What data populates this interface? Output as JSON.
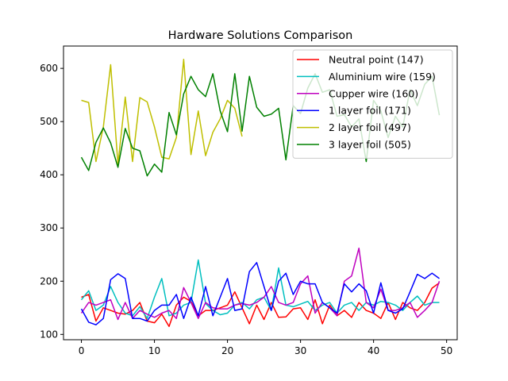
{
  "chart_data": {
    "type": "line",
    "title": "Hardware Solutions Comparison",
    "xlabel": "",
    "ylabel": "",
    "xlim": [
      -2.45,
      51.45
    ],
    "ylim": [
      90,
      642
    ],
    "xticks": [
      0,
      10,
      20,
      30,
      40,
      50
    ],
    "yticks": [
      100,
      200,
      300,
      400,
      500,
      600
    ],
    "grid": false,
    "legend_position": "top-right",
    "series": [
      {
        "name": "Neutral point (147)",
        "color": "#ff0000",
        "x": [
          0,
          1,
          2,
          3,
          4,
          5,
          6,
          7,
          8,
          9,
          10,
          11,
          12,
          13,
          14,
          15,
          16,
          17,
          18,
          19,
          20,
          21,
          22,
          23,
          24,
          25,
          26,
          27,
          28,
          29,
          30,
          31,
          32,
          33,
          34,
          35,
          36,
          37,
          38,
          39,
          40,
          41,
          42,
          43,
          44,
          45,
          46,
          47,
          48,
          49
        ],
        "values": [
          170,
          175,
          125,
          150,
          145,
          140,
          138,
          145,
          160,
          125,
          122,
          138,
          115,
          155,
          170,
          162,
          135,
          145,
          145,
          150,
          155,
          180,
          150,
          120,
          155,
          128,
          160,
          132,
          133,
          148,
          150,
          128,
          165,
          120,
          155,
          135,
          145,
          132,
          160,
          145,
          140,
          130,
          160,
          128,
          160,
          150,
          145,
          160,
          187,
          197
        ]
      },
      {
        "name": "Aluminium wire (159)",
        "color": "#00bfbf",
        "x": [
          0,
          1,
          2,
          3,
          4,
          5,
          6,
          7,
          8,
          9,
          10,
          11,
          12,
          13,
          14,
          15,
          16,
          17,
          18,
          19,
          20,
          21,
          22,
          23,
          24,
          25,
          26,
          27,
          28,
          29,
          30,
          31,
          32,
          33,
          34,
          35,
          36,
          37,
          38,
          39,
          40,
          41,
          42,
          43,
          44,
          45,
          46,
          47,
          48,
          49
        ],
        "values": [
          165,
          182,
          145,
          155,
          190,
          160,
          140,
          135,
          152,
          130,
          170,
          205,
          135,
          140,
          155,
          160,
          240,
          158,
          145,
          137,
          140,
          155,
          160,
          148,
          165,
          170,
          145,
          225,
          155,
          152,
          157,
          162,
          145,
          155,
          160,
          140,
          155,
          160,
          145,
          160,
          155,
          162,
          160,
          155,
          145,
          160,
          172,
          155,
          160,
          160
        ]
      },
      {
        "name": "Cupper wire (160)",
        "color": "#bf00bf",
        "x": [
          0,
          1,
          2,
          3,
          4,
          5,
          6,
          7,
          8,
          9,
          10,
          11,
          12,
          13,
          14,
          15,
          16,
          17,
          18,
          19,
          20,
          21,
          22,
          23,
          24,
          25,
          26,
          27,
          28,
          29,
          30,
          31,
          32,
          33,
          34,
          35,
          36,
          37,
          38,
          39,
          40,
          41,
          42,
          43,
          44,
          45,
          46,
          47,
          48,
          49
        ],
        "values": [
          140,
          160,
          155,
          160,
          165,
          128,
          160,
          130,
          145,
          138,
          132,
          140,
          145,
          130,
          188,
          160,
          130,
          160,
          150,
          148,
          148,
          155,
          158,
          155,
          160,
          170,
          190,
          160,
          155,
          160,
          195,
          210,
          140,
          160,
          150,
          135,
          200,
          210,
          262,
          160,
          150,
          185,
          145,
          145,
          150,
          160,
          132,
          145,
          160,
          200
        ]
      },
      {
        "name": "1 layer foil (171)",
        "color": "#0000ff",
        "x": [
          0,
          1,
          2,
          3,
          4,
          5,
          6,
          7,
          8,
          9,
          10,
          11,
          12,
          13,
          14,
          15,
          16,
          17,
          18,
          19,
          20,
          21,
          22,
          23,
          24,
          25,
          26,
          27,
          28,
          29,
          30,
          31,
          32,
          33,
          34,
          35,
          36,
          37,
          38,
          39,
          40,
          41,
          42,
          43,
          44,
          45,
          46,
          47,
          48,
          49
        ],
        "values": [
          148,
          123,
          118,
          130,
          203,
          214,
          205,
          130,
          130,
          125,
          145,
          155,
          155,
          175,
          130,
          170,
          135,
          190,
          135,
          170,
          205,
          145,
          148,
          218,
          235,
          190,
          145,
          200,
          215,
          175,
          200,
          195,
          195,
          160,
          150,
          140,
          195,
          180,
          195,
          182,
          140,
          197,
          145,
          140,
          148,
          180,
          213,
          205,
          215,
          205
        ]
      },
      {
        "name": "2 layer foil (497)",
        "color": "#bfbf00",
        "x": [
          0,
          1,
          2,
          3,
          4,
          5,
          6,
          7,
          8,
          9,
          10,
          11,
          12,
          13,
          14,
          15,
          16,
          17,
          18,
          19,
          20,
          21,
          22
        ],
        "values": [
          540,
          536,
          425,
          490,
          607,
          420,
          546,
          425,
          545,
          537,
          490,
          433,
          430,
          470,
          617,
          438,
          520,
          436,
          480,
          505,
          540,
          525,
          472
        ]
      },
      {
        "name": "3 layer foil (505)",
        "color": "#008000",
        "x": [
          0,
          1,
          2,
          3,
          4,
          5,
          6,
          7,
          8,
          9,
          10,
          11,
          12,
          13,
          14,
          15,
          16,
          17,
          18,
          19,
          20,
          21,
          22,
          23,
          24,
          25,
          26,
          27,
          28,
          29,
          30,
          31,
          32,
          33,
          34,
          35,
          36,
          37,
          38,
          39,
          40,
          41,
          42,
          43,
          44,
          45,
          46,
          47,
          48,
          49
        ],
        "values": [
          433,
          408,
          461,
          488,
          460,
          414,
          487,
          450,
          445,
          398,
          420,
          405,
          517,
          475,
          552,
          585,
          560,
          547,
          590,
          520,
          481,
          590,
          482,
          585,
          527,
          510,
          514,
          525,
          428,
          530,
          515,
          563,
          590,
          555,
          560,
          510,
          513,
          490,
          505,
          425,
          540,
          520,
          470,
          510,
          490,
          560,
          530,
          570,
          585,
          512
        ]
      }
    ]
  }
}
